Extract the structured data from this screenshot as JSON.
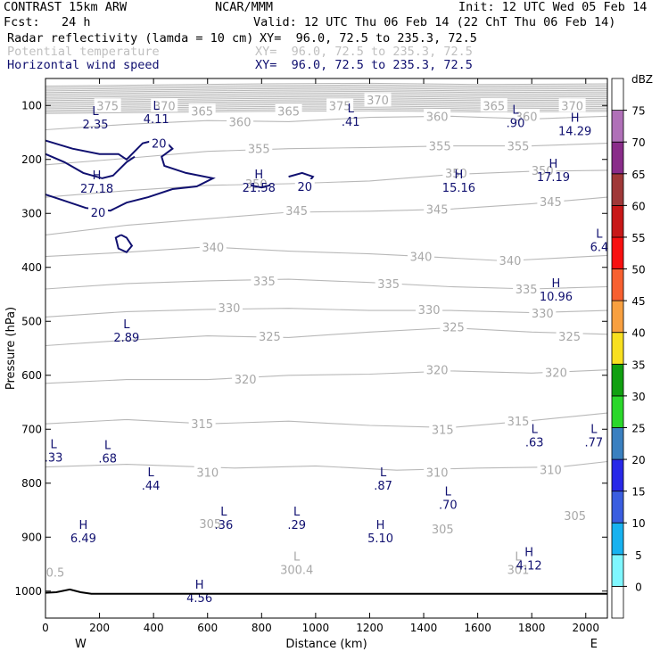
{
  "header": {
    "model": "CONTRAST 15km ARW",
    "center": "NCAR/MMM",
    "init": "Init: 12 UTC Wed 05 Feb 14",
    "fcst": "Fcst:   24 h",
    "valid": "Valid: 12 UTC Thu 06 Feb 14 (22 ChT Thu 06 Feb 14)"
  },
  "fields": [
    {
      "name": "Radar reflectivity (lamda = 10 cm)",
      "xy": "XY=  96.0, 72.5 to 235.3, 72.5",
      "color": "#000000"
    },
    {
      "name": "Potential temperature",
      "xy": "XY=  96.0, 72.5 to 235.3, 72.5",
      "color": "#c0c0c0"
    },
    {
      "name": "Horizontal wind speed",
      "xy": "XY=  96.0, 72.5 to 235.3, 72.5",
      "color": "#101070"
    }
  ],
  "chart_data": {
    "type": "cross-section",
    "xlabel": "Distance (km)",
    "ylabel": "Pressure (hPa)",
    "xlim": [
      0,
      2080
    ],
    "ylim": [
      1050,
      50
    ],
    "x_ticks": [
      0,
      200,
      400,
      600,
      800,
      1000,
      1200,
      1400,
      1600,
      1800,
      2000
    ],
    "y_ticks": [
      100,
      200,
      300,
      400,
      500,
      600,
      700,
      800,
      900,
      1000
    ],
    "endpoint_west": "W",
    "endpoint_east": "E",
    "colorbar": {
      "unit": "dBZ",
      "levels": [
        0,
        5,
        10,
        15,
        20,
        25,
        30,
        35,
        40,
        45,
        50,
        55,
        60,
        65,
        70,
        75
      ],
      "colors": [
        "#ffffff",
        "#7ff7ff",
        "#18b2f0",
        "#3a5ee0",
        "#2828e8",
        "#3a80c0",
        "#2bd82b",
        "#10a010",
        "#f8e020",
        "#f8a040",
        "#f86030",
        "#f81010",
        "#c81818",
        "#a03838",
        "#8a2c8a",
        "#b070b8",
        "#ffffff"
      ]
    },
    "theta_contours": {
      "interval": 5,
      "color": "#b8b8b8",
      "labels": [
        {
          "x": 230,
          "p": 100,
          "v": "375"
        },
        {
          "x": 440,
          "p": 100,
          "v": "370"
        },
        {
          "x": 580,
          "p": 110,
          "v": "365"
        },
        {
          "x": 720,
          "p": 130,
          "v": "360"
        },
        {
          "x": 900,
          "p": 110,
          "v": "365"
        },
        {
          "x": 1090,
          "p": 100,
          "v": "375"
        },
        {
          "x": 1230,
          "p": 90,
          "v": "370"
        },
        {
          "x": 1450,
          "p": 120,
          "v": "360"
        },
        {
          "x": 1660,
          "p": 100,
          "v": "365"
        },
        {
          "x": 1780,
          "p": 120,
          "v": "360"
        },
        {
          "x": 1950,
          "p": 100,
          "v": "370"
        },
        {
          "x": 790,
          "p": 180,
          "v": "355"
        },
        {
          "x": 1460,
          "p": 175,
          "v": "355"
        },
        {
          "x": 1750,
          "p": 175,
          "v": "355"
        },
        {
          "x": 780,
          "p": 245,
          "v": "350"
        },
        {
          "x": 1520,
          "p": 225,
          "v": "350"
        },
        {
          "x": 1840,
          "p": 220,
          "v": "350"
        },
        {
          "x": 930,
          "p": 295,
          "v": "345"
        },
        {
          "x": 1450,
          "p": 292,
          "v": "345"
        },
        {
          "x": 1870,
          "p": 278,
          "v": "345"
        },
        {
          "x": 620,
          "p": 362,
          "v": "340"
        },
        {
          "x": 1390,
          "p": 380,
          "v": "340"
        },
        {
          "x": 1720,
          "p": 387,
          "v": "340"
        },
        {
          "x": 810,
          "p": 425,
          "v": "335"
        },
        {
          "x": 1270,
          "p": 430,
          "v": "335"
        },
        {
          "x": 1780,
          "p": 440,
          "v": "335"
        },
        {
          "x": 680,
          "p": 475,
          "v": "330"
        },
        {
          "x": 1420,
          "p": 478,
          "v": "330"
        },
        {
          "x": 1840,
          "p": 485,
          "v": "330"
        },
        {
          "x": 830,
          "p": 528,
          "v": "325"
        },
        {
          "x": 1510,
          "p": 510,
          "v": "325"
        },
        {
          "x": 1940,
          "p": 528,
          "v": "325"
        },
        {
          "x": 740,
          "p": 607,
          "v": "320"
        },
        {
          "x": 1450,
          "p": 590,
          "v": "320"
        },
        {
          "x": 1890,
          "p": 595,
          "v": "320"
        },
        {
          "x": 580,
          "p": 690,
          "v": "315"
        },
        {
          "x": 1470,
          "p": 700,
          "v": "315"
        },
        {
          "x": 1750,
          "p": 685,
          "v": "315"
        },
        {
          "x": 600,
          "p": 780,
          "v": "310"
        },
        {
          "x": 1450,
          "p": 780,
          "v": "310"
        },
        {
          "x": 1870,
          "p": 775,
          "v": "310"
        },
        {
          "x": 610,
          "p": 875,
          "v": "305"
        },
        {
          "x": 1470,
          "p": 885,
          "v": "305"
        },
        {
          "x": 1960,
          "p": 860,
          "v": "305"
        }
      ],
      "extrema": [
        {
          "x": 930,
          "p": 960,
          "type": "L",
          "v": "300.4"
        },
        {
          "x": 1750,
          "p": 960,
          "type": "L",
          "v": "301"
        },
        {
          "x": 0,
          "p": 965,
          "type": "",
          "v": "0.5"
        }
      ]
    },
    "wind_speed": {
      "contour_level": 20,
      "color": "#101070",
      "contour_labels": [
        {
          "x": 420,
          "p": 170,
          "v": "20"
        },
        {
          "x": 960,
          "p": 250,
          "v": "20"
        },
        {
          "x": 195,
          "p": 298,
          "v": "20"
        }
      ],
      "extrema": [
        {
          "x": 185,
          "p": 123,
          "type": "L",
          "v": "2.35"
        },
        {
          "x": 410,
          "p": 113,
          "type": "L",
          "v": "4.11"
        },
        {
          "x": 1130,
          "p": 118,
          "type": "L",
          "v": ".41"
        },
        {
          "x": 1740,
          "p": 120,
          "type": "L",
          "v": ".90"
        },
        {
          "x": 1960,
          "p": 135,
          "type": "H",
          "v": "14.29"
        },
        {
          "x": 190,
          "p": 242,
          "type": "H",
          "v": "27.18"
        },
        {
          "x": 790,
          "p": 240,
          "type": "H",
          "v": "21.58"
        },
        {
          "x": 1530,
          "p": 240,
          "type": "H",
          "v": "15.16"
        },
        {
          "x": 1880,
          "p": 220,
          "type": "H",
          "v": "17.19"
        },
        {
          "x": 2050,
          "p": 350,
          "type": "L",
          "v": "6.4"
        },
        {
          "x": 1890,
          "p": 442,
          "type": "H",
          "v": "10.96"
        },
        {
          "x": 300,
          "p": 518,
          "type": "L",
          "v": "2.89"
        },
        {
          "x": 30,
          "p": 740,
          "type": "L",
          "v": ".33"
        },
        {
          "x": 230,
          "p": 742,
          "type": "L",
          "v": ".68"
        },
        {
          "x": 390,
          "p": 792,
          "type": "L",
          "v": ".44"
        },
        {
          "x": 1250,
          "p": 792,
          "type": "L",
          "v": ".87"
        },
        {
          "x": 1490,
          "p": 828,
          "type": "L",
          "v": ".70"
        },
        {
          "x": 1810,
          "p": 712,
          "type": "L",
          "v": ".63"
        },
        {
          "x": 2030,
          "p": 712,
          "type": "L",
          "v": ".77"
        },
        {
          "x": 660,
          "p": 865,
          "type": "L",
          "v": ".36"
        },
        {
          "x": 930,
          "p": 865,
          "type": "L",
          "v": ".29"
        },
        {
          "x": 140,
          "p": 890,
          "type": "H",
          "v": "6.49"
        },
        {
          "x": 1240,
          "p": 890,
          "type": "H",
          "v": "5.10"
        },
        {
          "x": 1790,
          "p": 940,
          "type": "H",
          "v": "4.12"
        },
        {
          "x": 570,
          "p": 1000,
          "type": "H",
          "v": "4.56"
        }
      ]
    },
    "terrain": [
      [
        0,
        1003
      ],
      [
        40,
        1002
      ],
      [
        90,
        997
      ],
      [
        130,
        1002
      ],
      [
        170,
        1005
      ],
      [
        2080,
        1005
      ]
    ]
  }
}
